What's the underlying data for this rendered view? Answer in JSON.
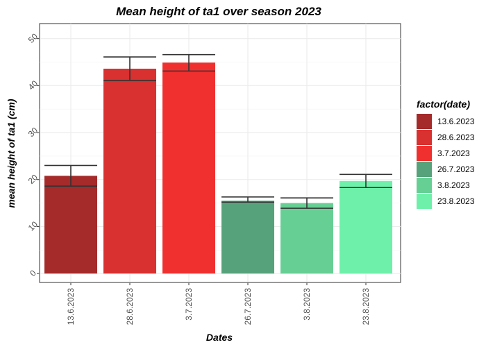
{
  "chart_data": {
    "type": "bar",
    "title": "Mean height of ta1 over season 2023",
    "xlabel": "Dates",
    "ylabel": "mean height of ta1 (cm)",
    "categories": [
      "13.6.2023",
      "28.6.2023",
      "3.7.2023",
      "26.7.2023",
      "3.8.2023",
      "23.8.2023"
    ],
    "values": [
      20.8,
      43.6,
      44.9,
      15.5,
      15.0,
      19.7
    ],
    "error_low": [
      18.6,
      41.1,
      43.1,
      15.2,
      13.9,
      18.3
    ],
    "error_high": [
      23.0,
      46.1,
      46.6,
      16.3,
      16.1,
      21.1
    ],
    "colors": [
      "#a52a2a",
      "#d93030",
      "#f0302f",
      "#56a27a",
      "#66cf94",
      "#6ef0aa"
    ],
    "ylim": [
      0,
      52
    ],
    "yticks": [
      0,
      10,
      20,
      30,
      40,
      50
    ],
    "grid": true,
    "legend": {
      "title": "factor(date)",
      "position": "right",
      "entries": [
        "13.6.2023",
        "28.6.2023",
        "3.7.2023",
        "26.7.2023",
        "3.8.2023",
        "23.8.2023"
      ]
    }
  }
}
